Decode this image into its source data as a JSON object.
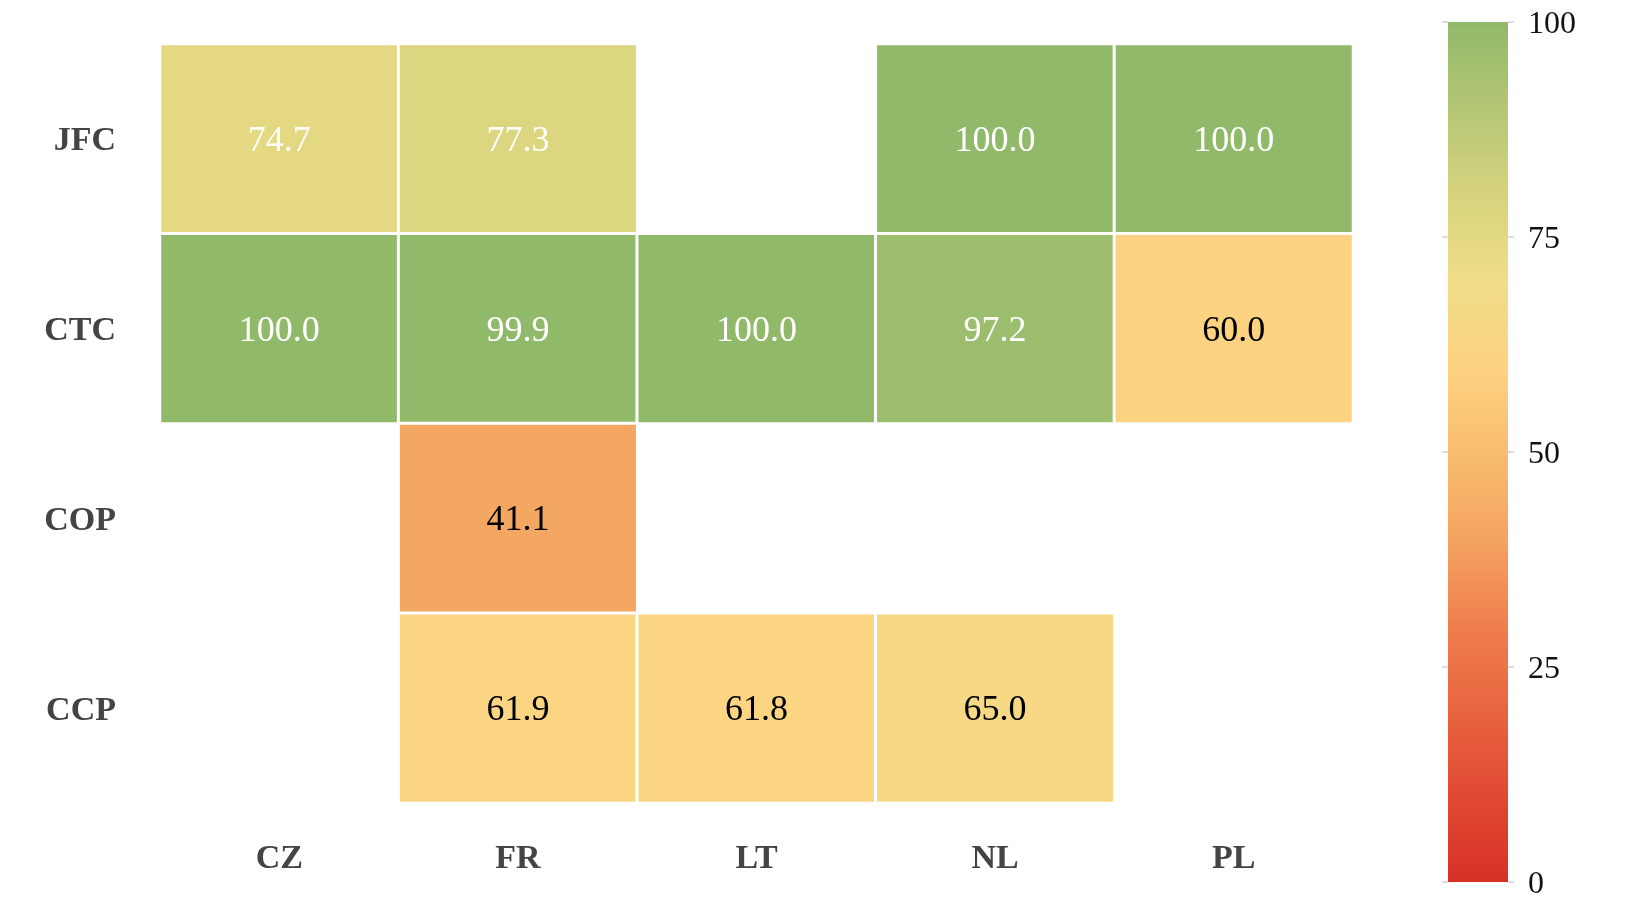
{
  "chart_data": {
    "type": "heatmap",
    "categories": [
      "CZ",
      "FR",
      "LT",
      "NL",
      "PL"
    ],
    "y_categories": [
      "JFC",
      "CTC",
      "COP",
      "CCP"
    ],
    "cells": [
      [
        74.7,
        77.3,
        null,
        100.0,
        100.0
      ],
      [
        100.0,
        99.9,
        100.0,
        97.2,
        60.0
      ],
      [
        null,
        41.1,
        null,
        null,
        null
      ],
      [
        null,
        61.9,
        61.8,
        65.0,
        null
      ]
    ],
    "cell_labels": [
      [
        "74.7",
        "77.3",
        null,
        "100.0",
        "100.0"
      ],
      [
        "100.0",
        "99.9",
        "100.0",
        "97.2",
        "60.0"
      ],
      [
        null,
        "41.1",
        null,
        null,
        null
      ],
      [
        null,
        "61.9",
        "61.8",
        "65.0",
        null
      ]
    ],
    "clim": [
      0,
      100
    ],
    "cticks": [
      0,
      25,
      50,
      75,
      100
    ]
  }
}
